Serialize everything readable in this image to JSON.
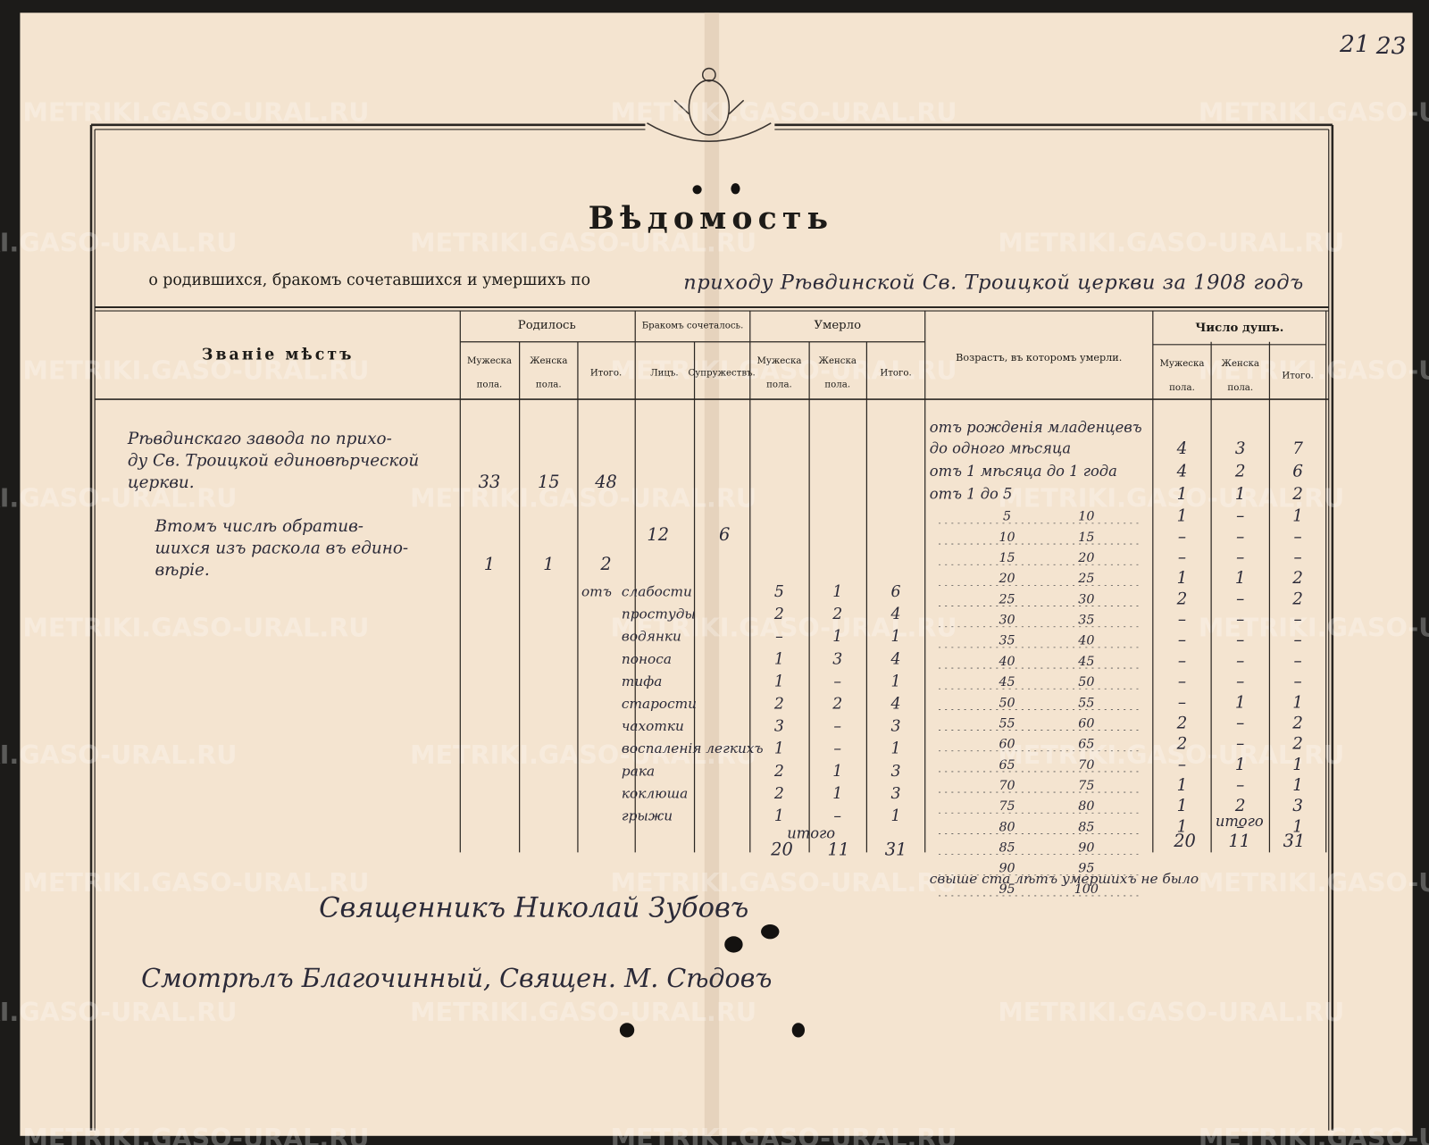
{
  "page_numbers": [
    "21",
    "23"
  ],
  "watermark": "METRIKI.GASO-URAL.RU",
  "title": "Вѣдомость",
  "subtitle": {
    "printed": "о родившихся, бракомъ сочетавшихся и умершихъ по",
    "handwritten": "приходу Рѣвдинской Св. Троицкой церкви за 1908 годъ"
  },
  "headers": {
    "place": "Званіе мѣстъ",
    "born": {
      "title": "Родилось",
      "columns": [
        "Мужеска пола.",
        "Женска пола.",
        "Итого."
      ]
    },
    "married": {
      "title": "Бракомъ сочеталось.",
      "columns": [
        "Лицъ.",
        "Супружествъ."
      ]
    },
    "died": {
      "title": "Умерло",
      "columns": [
        "Мужеска пола.",
        "Женска пола.",
        "Итого."
      ]
    },
    "age": "Возрастъ, въ которомъ умерли.",
    "souls": {
      "title": "Число душъ.",
      "columns": [
        "Мужеска пола.",
        "Женска пола.",
        "Итого."
      ]
    }
  },
  "place": {
    "lines": [
      "Рѣвдинскаго завода по прихо-",
      "ду Св. Троицкой единовѣрческой",
      "церкви."
    ],
    "born": [
      33,
      15,
      48
    ]
  },
  "converts": {
    "lines": [
      "Втомъ числѣ обратив-",
      "шихся изъ раскола въ едино-",
      "вѣріе."
    ],
    "born": [
      1,
      1,
      2
    ]
  },
  "marriages": {
    "persons": 12,
    "couples": 6
  },
  "causes": {
    "prefix": "отъ",
    "rows": [
      {
        "cause": "слабости",
        "values": [
          5,
          1,
          6
        ]
      },
      {
        "cause": "простуды",
        "values": [
          2,
          2,
          4
        ]
      },
      {
        "cause": "водянки",
        "values": [
          "–",
          1,
          1
        ]
      },
      {
        "cause": "поноса",
        "values": [
          1,
          3,
          4
        ]
      },
      {
        "cause": "тифа",
        "values": [
          1,
          "–",
          1
        ]
      },
      {
        "cause": "старости",
        "values": [
          2,
          2,
          4
        ]
      },
      {
        "cause": "чахотки",
        "values": [
          3,
          "–",
          3
        ]
      },
      {
        "cause": "воспаленія легкихъ",
        "values": [
          1,
          "–",
          1
        ]
      },
      {
        "cause": "рака",
        "values": [
          2,
          1,
          3
        ]
      },
      {
        "cause": "коклюша",
        "values": [
          2,
          1,
          3
        ]
      },
      {
        "cause": "грыжи",
        "values": [
          1,
          "–",
          1
        ]
      }
    ],
    "total_label": "итого",
    "total": [
      20,
      11,
      31
    ]
  },
  "ages": {
    "rows": [
      {
        "label": [
          "отъ рожденія младенцевъ",
          "до одного мѣсяца"
        ],
        "values": [
          4,
          3,
          7
        ]
      },
      {
        "label": [
          "отъ 1 мѣсяца до 1 года"
        ],
        "values": [
          4,
          2,
          6
        ]
      },
      {
        "label": [
          "отъ 1 до 5"
        ],
        "values": [
          1,
          1,
          2
        ]
      },
      {
        "from": "5",
        "to": "10",
        "values": [
          1,
          "–",
          1
        ]
      },
      {
        "from": "10",
        "to": "15",
        "values": [
          "–",
          "–",
          "–"
        ]
      },
      {
        "from": "15",
        "to": "20",
        "values": [
          "–",
          "–",
          "–"
        ]
      },
      {
        "from": "20",
        "to": "25",
        "values": [
          1,
          1,
          2
        ]
      },
      {
        "from": "25",
        "to": "30",
        "values": [
          2,
          "–",
          2
        ]
      },
      {
        "from": "30",
        "to": "35",
        "values": [
          "–",
          "–",
          "–"
        ]
      },
      {
        "from": "35",
        "to": "40",
        "values": [
          "–",
          "–",
          "–"
        ]
      },
      {
        "from": "40",
        "to": "45",
        "values": [
          "–",
          "–",
          "–"
        ]
      },
      {
        "from": "45",
        "to": "50",
        "values": [
          "–",
          "–",
          "–"
        ]
      },
      {
        "from": "50",
        "to": "55",
        "values": [
          "–",
          1,
          1
        ]
      },
      {
        "from": "55",
        "to": "60",
        "values": [
          2,
          "–",
          2
        ]
      },
      {
        "from": "60",
        "to": "65",
        "values": [
          2,
          "–",
          2
        ]
      },
      {
        "from": "65",
        "to": "70",
        "values": [
          "–",
          1,
          1
        ]
      },
      {
        "from": "70",
        "to": "75",
        "values": [
          1,
          "–",
          1
        ]
      },
      {
        "from": "75",
        "to": "80",
        "values": [
          1,
          2,
          3
        ]
      },
      {
        "from": "80",
        "to": "85",
        "values": [
          1,
          "–",
          1
        ]
      },
      {
        "from": "85",
        "to": "90",
        "values": []
      },
      {
        "from": "90",
        "to": "95",
        "values": []
      },
      {
        "from": "95",
        "to": "100",
        "values": []
      }
    ],
    "total_label": "итого",
    "total": [
      20,
      11,
      31
    ],
    "note": "свыше ста лѣтъ умершихъ не было"
  },
  "signatures": [
    "Священникъ Николай Зубовъ",
    "Смотрѣлъ Благочинный, Священ. М. Сѣдовъ"
  ]
}
